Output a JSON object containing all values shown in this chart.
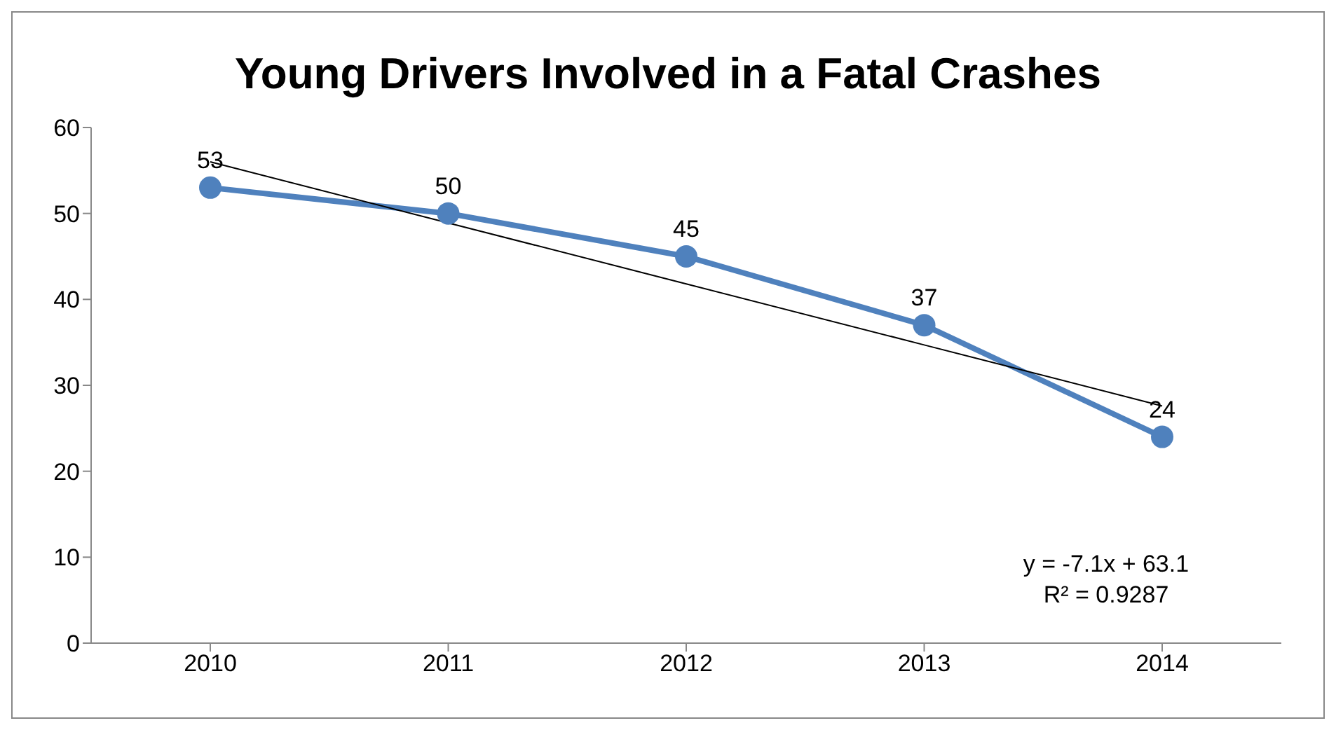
{
  "chart_data": {
    "type": "line",
    "title": "Young Drivers Involved in a Fatal Crashes",
    "categories": [
      "2010",
      "2011",
      "2012",
      "2013",
      "2014"
    ],
    "series": [
      {
        "color": "#4f81bd",
        "values": [
          53,
          50,
          45,
          37,
          24
        ],
        "marker": "circle",
        "data_labels": true
      },
      {
        "color": "#000000",
        "values": [
          56,
          48.9,
          41.8,
          34.7,
          27.6
        ],
        "marker": "none"
      }
    ],
    "ylim": [
      0,
      60
    ],
    "yticks": [
      0,
      10,
      20,
      30,
      40,
      50,
      60
    ],
    "line_style": "solid",
    "annotations": [
      "y = -7.1x + 63.1",
      "R² = 0.9287"
    ]
  }
}
